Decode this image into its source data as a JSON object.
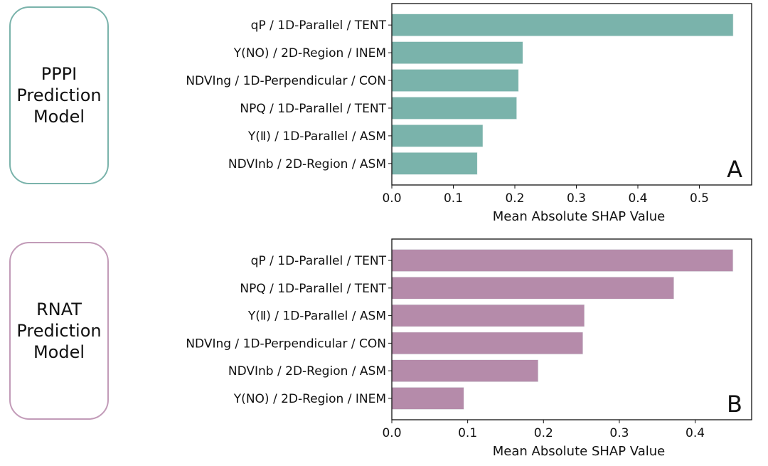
{
  "chart_data": [
    {
      "type": "bar",
      "orientation": "horizontal",
      "panel_letter": "A",
      "model_label": [
        "PPPI",
        "Prediction",
        "Model"
      ],
      "color": "#7ab3ab",
      "box_border_color": "#7ab3ab",
      "categories": [
        "qP / 1D-Parallel / TENT",
        "Y(NO) / 2D-Region / INEM",
        "NDVIng / 1D-Perpendicular / CON",
        "NPQ / 1D-Parallel / TENT",
        "Y(Ⅱ) / 1D-Parallel / ASM",
        "NDVInb / 2D-Region / ASM"
      ],
      "values": [
        0.555,
        0.213,
        0.206,
        0.203,
        0.148,
        0.139
      ],
      "xlabel": "Mean Absolute SHAP Value",
      "ylabel": "",
      "xlim": [
        0,
        0.585
      ],
      "xticks": [
        0.0,
        0.1,
        0.2,
        0.3,
        0.4,
        0.5
      ],
      "xtick_labels": [
        "0.0",
        "0.1",
        "0.2",
        "0.3",
        "0.4",
        "0.5"
      ],
      "grid": false
    },
    {
      "type": "bar",
      "orientation": "horizontal",
      "panel_letter": "B",
      "model_label": [
        "RNAT",
        "Prediction",
        "Model"
      ],
      "color": "#b58baa",
      "box_border_color": "#c29bb8",
      "categories": [
        "qP / 1D-Parallel / TENT",
        "NPQ / 1D-Parallel / TENT",
        "Y(Ⅱ) / 1D-Parallel / ASM",
        "NDVIng / 1D-Perpendicular / CON",
        "NDVInb / 2D-Region / ASM",
        "Y(NO) / 2D-Region / INEM"
      ],
      "values": [
        0.45,
        0.372,
        0.254,
        0.252,
        0.193,
        0.095
      ],
      "xlabel": "Mean Absolute SHAP Value",
      "ylabel": "",
      "xlim": [
        0,
        0.4745
      ],
      "xticks": [
        0.0,
        0.1,
        0.2,
        0.3,
        0.4
      ],
      "xtick_labels": [
        "0.0",
        "0.1",
        "0.2",
        "0.3",
        "0.4"
      ],
      "grid": false
    }
  ]
}
